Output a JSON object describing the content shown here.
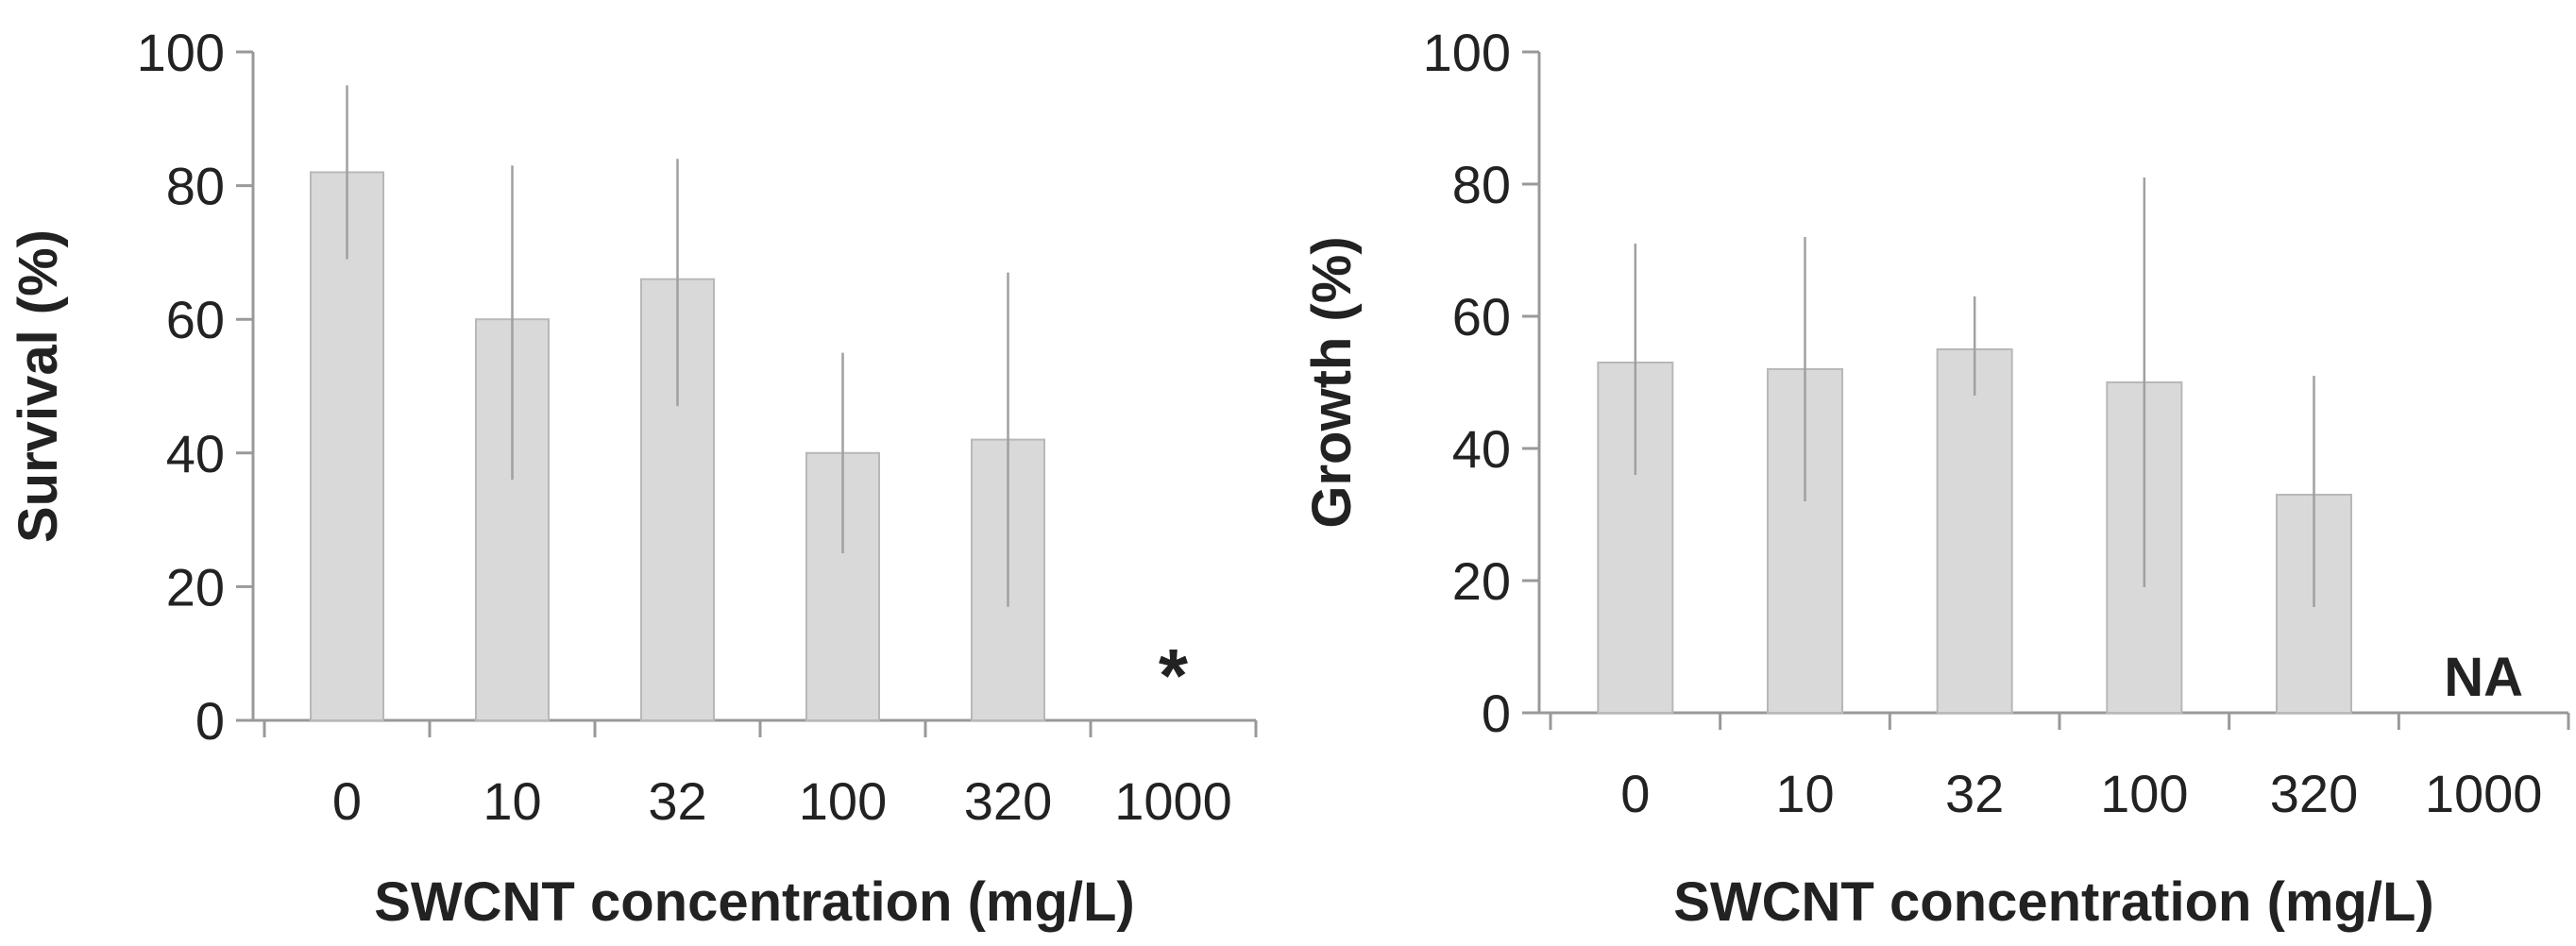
{
  "chart_data": [
    {
      "type": "bar",
      "categories": [
        "0",
        "10",
        "32",
        "100",
        "320",
        "1000"
      ],
      "values": [
        82,
        60,
        66,
        40,
        42,
        null
      ],
      "error_low": [
        69,
        36,
        47,
        25,
        17,
        null
      ],
      "error_high": [
        95,
        83,
        84,
        55,
        67,
        null
      ],
      "title": "",
      "xlabel": "SWCNT concentration (mg/L)",
      "ylabel": "Survival (%)",
      "ylim": [
        0,
        100
      ],
      "yticks": [
        "0",
        "20",
        "40",
        "60",
        "80",
        "100"
      ],
      "annotations": [
        {
          "category": "1000",
          "text": "*"
        }
      ],
      "colors": {
        "bar": "#d9d9d9",
        "bar_edge": "#b8b8b8",
        "error": "#a0a0a0",
        "axis": "#999999"
      }
    },
    {
      "type": "bar",
      "categories": [
        "0",
        "10",
        "32",
        "100",
        "320",
        "1000"
      ],
      "values": [
        53,
        52,
        55,
        50,
        33,
        null
      ],
      "error_low": [
        36,
        32,
        48,
        19,
        16,
        null
      ],
      "error_high": [
        71,
        72,
        63,
        81,
        51,
        null
      ],
      "title": "",
      "xlabel": "SWCNT concentration (mg/L)",
      "ylabel": "Growth (%)",
      "ylim": [
        0,
        100
      ],
      "yticks": [
        "0",
        "20",
        "40",
        "60",
        "80",
        "100"
      ],
      "annotations": [
        {
          "category": "1000",
          "text": "NA"
        }
      ],
      "colors": {
        "bar": "#d9d9d9",
        "bar_edge": "#b8b8b8",
        "error": "#a0a0a0",
        "axis": "#999999"
      }
    }
  ]
}
